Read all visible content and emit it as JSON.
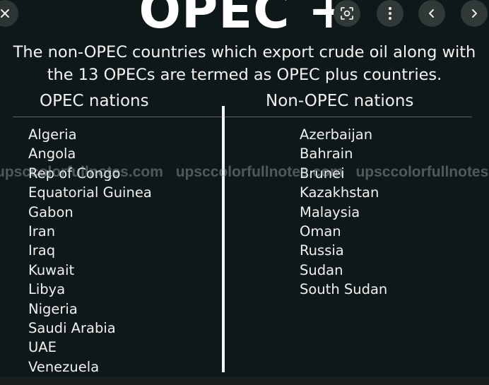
{
  "image": {
    "title": "OPEC +",
    "subtitle_line1": "The non-OPEC countries which export crude oil along with",
    "subtitle_line2": "the 13 OPECs are termed as OPEC plus countries.",
    "left_header": "OPEC nations",
    "right_header": "Non-OPEC nations",
    "opec_nations": [
      "Algeria",
      "Angola",
      "Rep of Congo",
      "Equatorial Guinea",
      "Gabon",
      "Iran",
      "Iraq",
      "Kuwait",
      "Libya",
      "Nigeria",
      "Saudi Arabia",
      "UAE",
      "Venezuela"
    ],
    "non_opec_nations": [
      "Azerbaijan",
      "Bahrain",
      "Brunei",
      "Kazakhstan",
      "Malaysia",
      "Oman",
      "Russia",
      "Sudan",
      "South Sudan"
    ],
    "watermark": [
      "upsccolorfullnotes.com",
      "upsccolorfullnotes.com",
      "upsccolorfullnotes.com"
    ]
  },
  "controls": {
    "close_icon": "close-icon",
    "lens_icon": "lens-icon",
    "more_icon": "more-vertical-icon",
    "prev_icon": "chevron-left-icon",
    "next_icon": "chevron-right-icon"
  },
  "colors": {
    "background": "#0e1818",
    "text": "#ffffff",
    "button_bg": "#303838"
  }
}
